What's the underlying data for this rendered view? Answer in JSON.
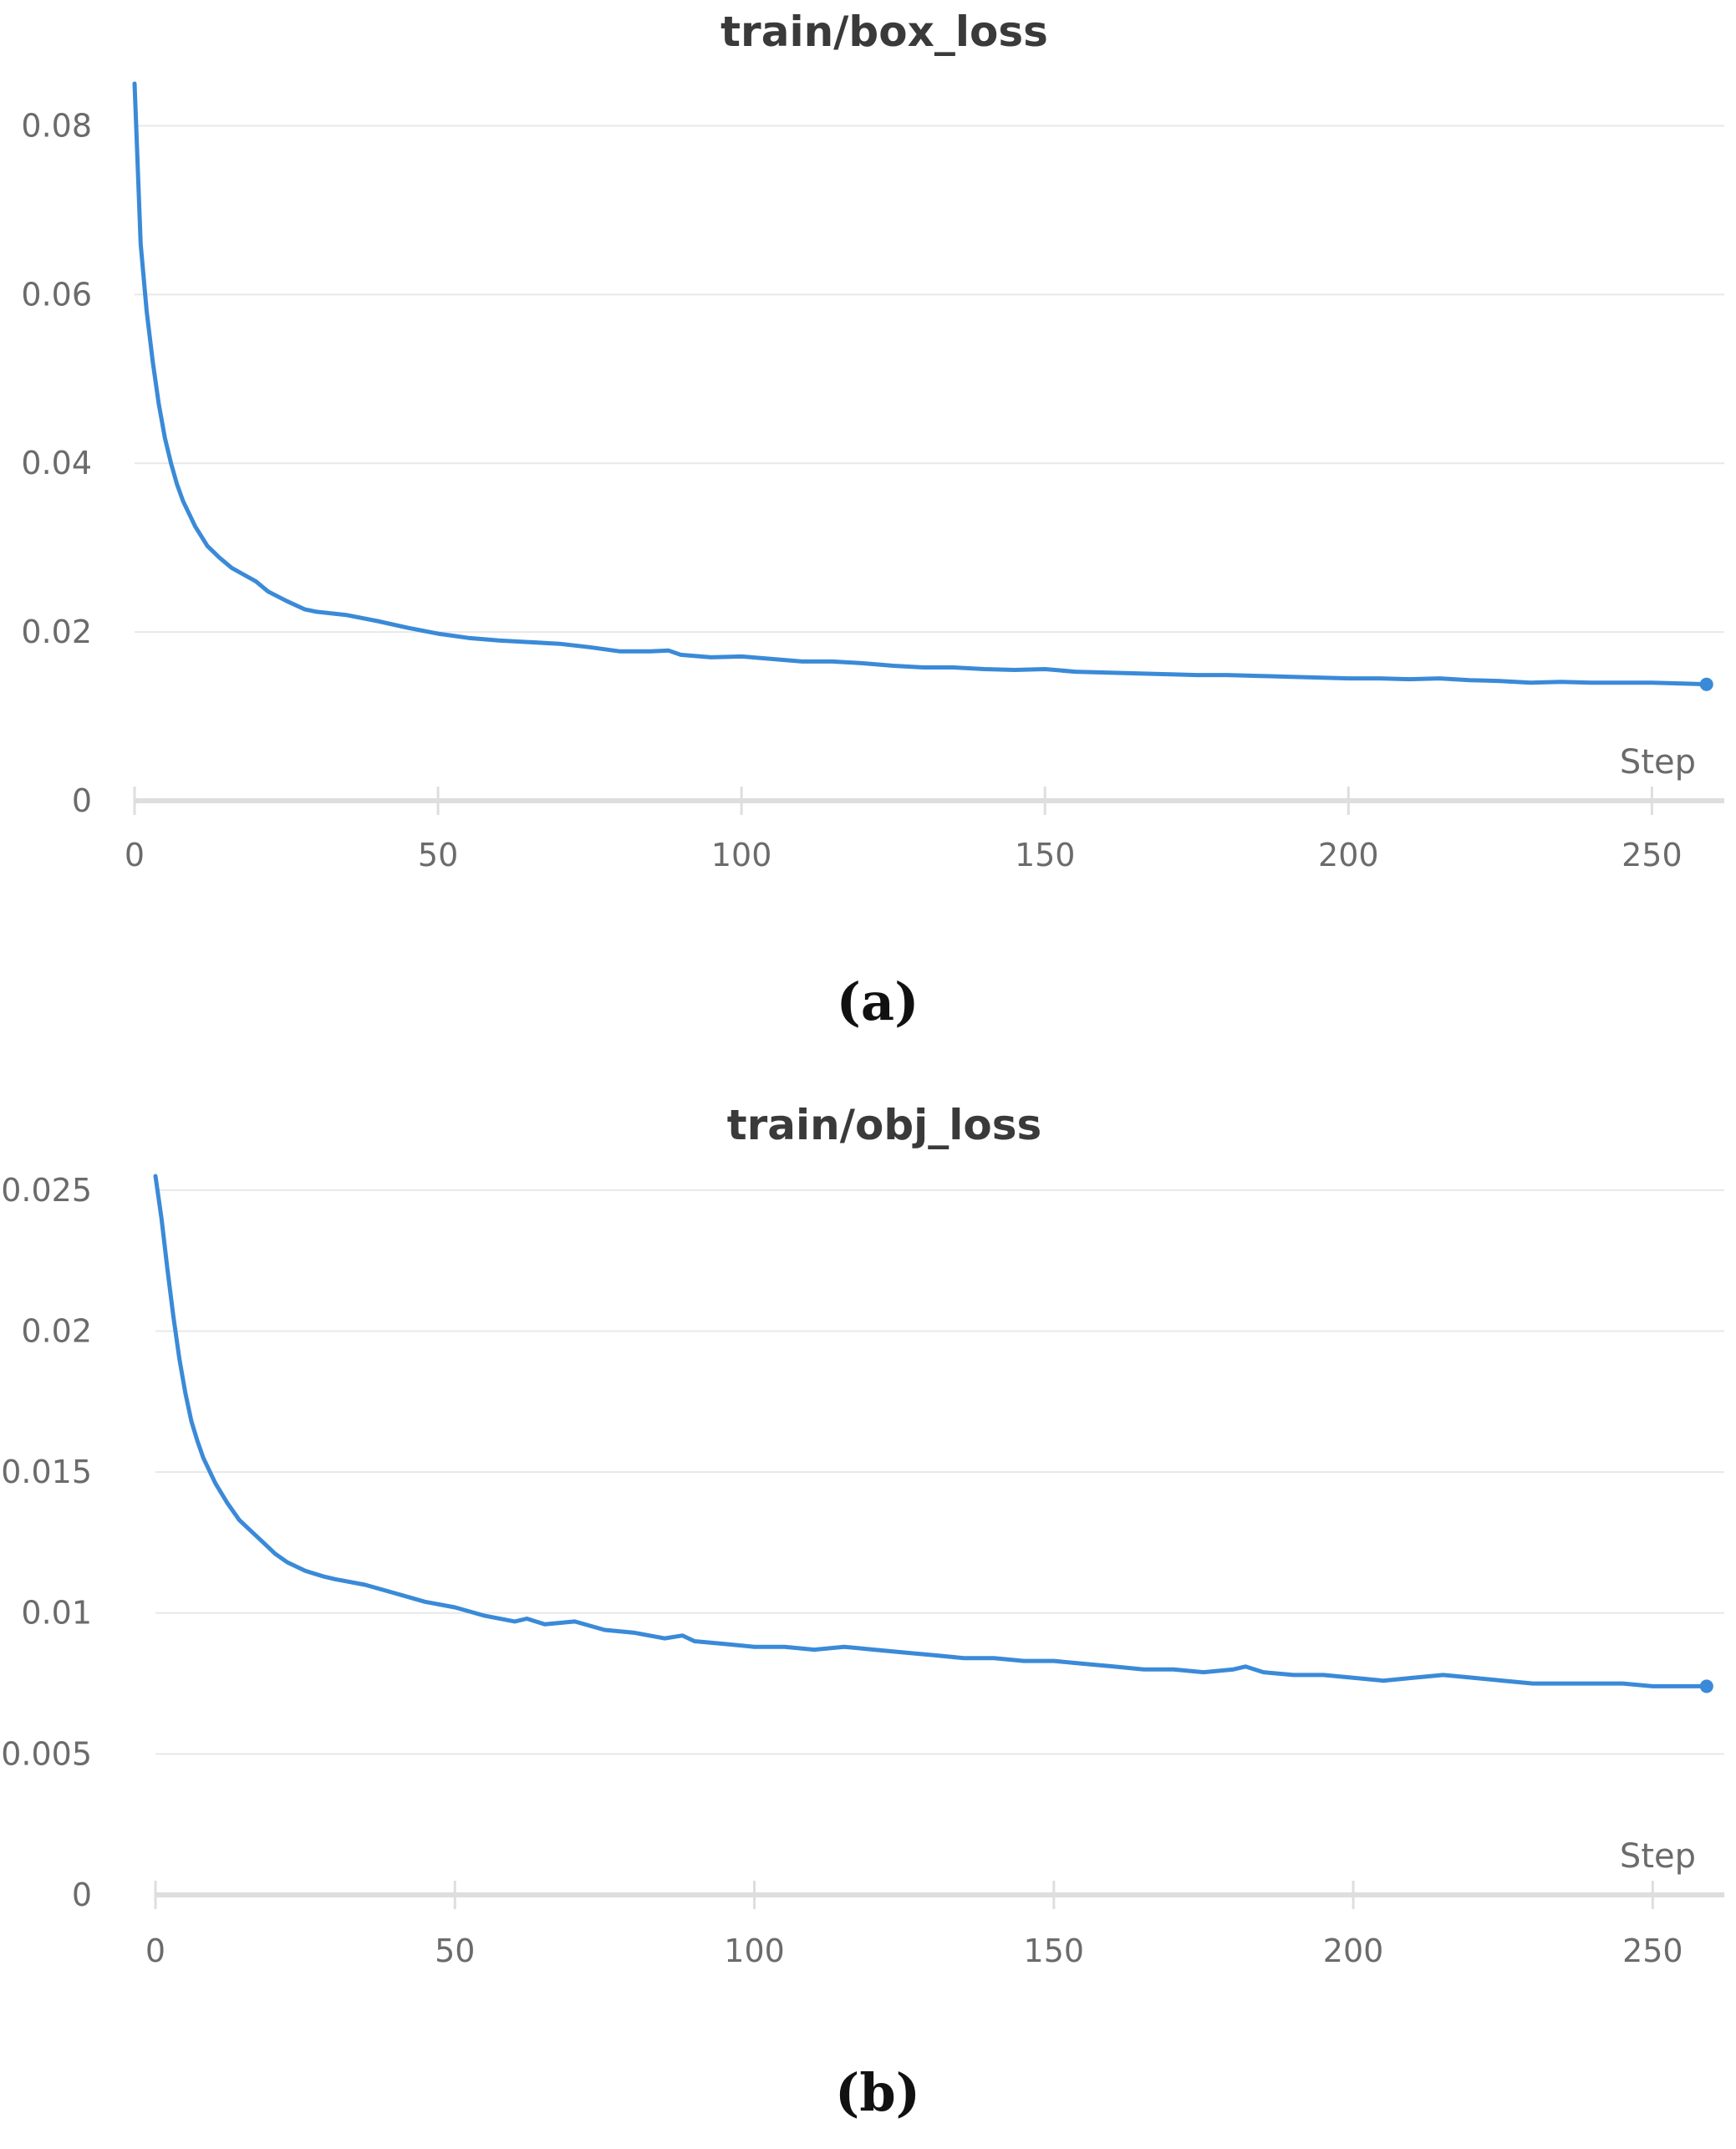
{
  "chart_data": [
    {
      "type": "line",
      "title": "train/box_loss",
      "xlabel": "Step",
      "ylabel": "",
      "caption": "(a)",
      "xlim": [
        0,
        260
      ],
      "ylim": [
        0,
        0.085
      ],
      "xticks": [
        0,
        50,
        100,
        150,
        200,
        250
      ],
      "xtick_labels": [
        "0",
        "50",
        "100",
        "150",
        "200",
        "250"
      ],
      "yticks": [
        0,
        0.02,
        0.04,
        0.06,
        0.08
      ],
      "ytick_labels": [
        "0",
        "0.02",
        "0.04",
        "0.06",
        "0.08"
      ],
      "grid": true,
      "line_color": "#3a8ad8",
      "series": [
        {
          "x": [
            0,
            1,
            2,
            3,
            4,
            5,
            6,
            7,
            8,
            10,
            12,
            14,
            16,
            18,
            20,
            22,
            25,
            28,
            30,
            35,
            40,
            45,
            50,
            55,
            60,
            65,
            70,
            75,
            80,
            85,
            88,
            90,
            95,
            100,
            105,
            110,
            115,
            120,
            125,
            130,
            135,
            140,
            145,
            150,
            155,
            160,
            165,
            170,
            175,
            180,
            185,
            190,
            195,
            200,
            205,
            210,
            215,
            220,
            225,
            230,
            235,
            240,
            245,
            250,
            255,
            259
          ],
          "y": [
            0.085,
            0.066,
            0.058,
            0.052,
            0.047,
            0.043,
            0.04,
            0.0375,
            0.0355,
            0.0325,
            0.0302,
            0.0288,
            0.0276,
            0.0268,
            0.026,
            0.0248,
            0.0237,
            0.0227,
            0.0224,
            0.022,
            0.0213,
            0.0205,
            0.0198,
            0.0193,
            0.019,
            0.0188,
            0.0186,
            0.0182,
            0.0177,
            0.0177,
            0.0178,
            0.0173,
            0.017,
            0.0171,
            0.0168,
            0.0165,
            0.0165,
            0.0163,
            0.016,
            0.0158,
            0.0158,
            0.0156,
            0.0155,
            0.0156,
            0.0153,
            0.0152,
            0.0151,
            0.015,
            0.0149,
            0.0149,
            0.0148,
            0.0147,
            0.0146,
            0.0145,
            0.0145,
            0.0144,
            0.0145,
            0.0143,
            0.0142,
            0.014,
            0.0141,
            0.014,
            0.014,
            0.014,
            0.0139,
            0.0138
          ]
        }
      ]
    },
    {
      "type": "line",
      "title": "train/obj_loss",
      "xlabel": "Step",
      "ylabel": "",
      "caption": "(b)",
      "xlim": [
        0,
        260
      ],
      "ylim": [
        0,
        0.0255
      ],
      "xticks": [
        0,
        50,
        100,
        150,
        200,
        250
      ],
      "xtick_labels": [
        "0",
        "50",
        "100",
        "150",
        "200",
        "250"
      ],
      "yticks": [
        0,
        0.005,
        0.01,
        0.015,
        0.02,
        0.025
      ],
      "ytick_labels": [
        "0",
        "0.005",
        "0.01",
        "0.015",
        "0.02",
        "0.025"
      ],
      "grid": true,
      "line_color": "#3a8ad8",
      "series": [
        {
          "x": [
            0,
            1,
            2,
            3,
            4,
            5,
            6,
            7,
            8,
            10,
            12,
            14,
            16,
            18,
            20,
            22,
            25,
            28,
            30,
            35,
            40,
            45,
            50,
            55,
            60,
            62,
            65,
            70,
            75,
            80,
            85,
            88,
            90,
            95,
            100,
            105,
            110,
            115,
            120,
            125,
            130,
            135,
            140,
            145,
            150,
            155,
            160,
            165,
            170,
            175,
            180,
            182,
            185,
            190,
            195,
            200,
            205,
            210,
            215,
            220,
            225,
            230,
            235,
            240,
            245,
            250,
            255,
            259
          ],
          "y": [
            0.0255,
            0.024,
            0.0222,
            0.0205,
            0.019,
            0.0178,
            0.0168,
            0.0161,
            0.0155,
            0.0146,
            0.0139,
            0.0133,
            0.0129,
            0.0125,
            0.0121,
            0.0118,
            0.0115,
            0.0113,
            0.0112,
            0.011,
            0.0107,
            0.0104,
            0.0102,
            0.0099,
            0.0097,
            0.0098,
            0.0096,
            0.0097,
            0.0094,
            0.0093,
            0.0091,
            0.0092,
            0.009,
            0.0089,
            0.0088,
            0.0088,
            0.0087,
            0.0088,
            0.0087,
            0.0086,
            0.0085,
            0.0084,
            0.0084,
            0.0083,
            0.0083,
            0.0082,
            0.0081,
            0.008,
            0.008,
            0.0079,
            0.008,
            0.0081,
            0.0079,
            0.0078,
            0.0078,
            0.0077,
            0.0076,
            0.0077,
            0.0078,
            0.0077,
            0.0076,
            0.0075,
            0.0075,
            0.0075,
            0.0075,
            0.0074,
            0.0074,
            0.0074
          ]
        }
      ]
    }
  ]
}
